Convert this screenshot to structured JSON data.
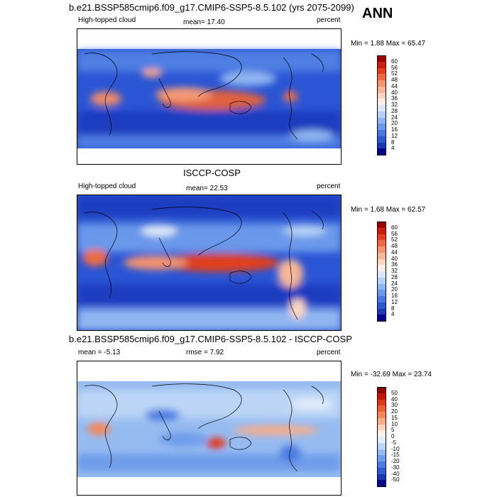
{
  "figure": {
    "season": "ANN"
  },
  "panels": [
    {
      "title": "b.e21.BSSP585cmip6.f09_g17.CMIP6-SSP5-8.5.102 (yrs 2075-2099)",
      "left_label": "High-topped cloud",
      "center_label": "mean=  17.40",
      "right_label": "percent",
      "minmax": "Min =   1.88 Max =  65.47",
      "colorbar": {
        "labels": [
          "60",
          "56",
          "52",
          "48",
          "44",
          "40",
          "36",
          "32",
          "28",
          "24",
          "20",
          "16",
          "12",
          "8",
          "4"
        ],
        "colors": [
          "#9e0000",
          "#c81e0f",
          "#e0401e",
          "#ee6a42",
          "#f5936f",
          "#f8b698",
          "#fbd6c2",
          "#fdeee6",
          "#dce8f9",
          "#b4d0f5",
          "#8fb5f0",
          "#6b98ea",
          "#4a78e0",
          "#2e58cf",
          "#1a38b4",
          "#00008b"
        ]
      }
    },
    {
      "title": "ISCCP-COSP",
      "left_label": "High-topped cloud",
      "center_label": "mean=  22.53",
      "right_label": "percent",
      "minmax": "Min =   1.68 Max =  62.57",
      "colorbar": {
        "labels": [
          "60",
          "56",
          "52",
          "48",
          "44",
          "40",
          "36",
          "32",
          "28",
          "24",
          "20",
          "16",
          "12",
          "8",
          "4"
        ],
        "colors": [
          "#9e0000",
          "#c81e0f",
          "#e0401e",
          "#ee6a42",
          "#f5936f",
          "#f8b698",
          "#fbd6c2",
          "#fdeee6",
          "#dce8f9",
          "#b4d0f5",
          "#8fb5f0",
          "#6b98ea",
          "#4a78e0",
          "#2e58cf",
          "#1a38b4",
          "#00008b"
        ]
      }
    },
    {
      "title": "b.e21.BSSP585cmip6.f09_g17.CMIP6-SSP5-8.5.102 - ISCCP-COSP",
      "left_label": "mean =  -5.13",
      "center_label": "rmse =   7.92",
      "right_label": "percent",
      "minmax": "Min = -32.69 Max =  23.74",
      "colorbar": {
        "labels": [
          "50",
          "40",
          "30",
          "20",
          "15",
          "10",
          "5",
          "0",
          "-5",
          "-10",
          "-15",
          "-20",
          "-30",
          "-40",
          "-50"
        ],
        "colors": [
          "#8b0000",
          "#c2160a",
          "#dc3a1a",
          "#ec5f30",
          "#f4875a",
          "#f8ad89",
          "#fbd2bb",
          "#fdf0e8",
          "#e2ecfb",
          "#bcd5f6",
          "#96bbf1",
          "#6f9deb",
          "#4b7ce1",
          "#2f5bd0",
          "#1838b2",
          "#00008b"
        ]
      }
    }
  ]
}
